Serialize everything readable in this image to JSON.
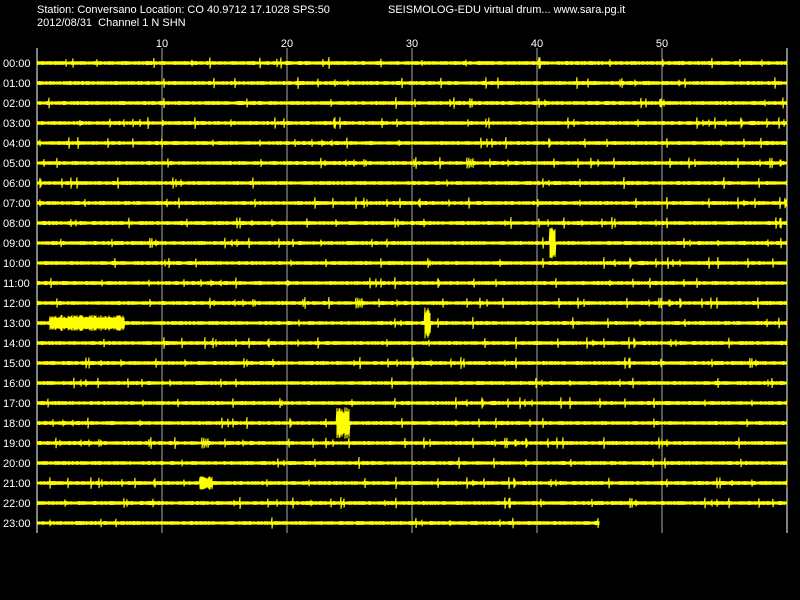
{
  "header": {
    "station_line": "Station: Conversano Location: CO 40.9712 17.1028 SPS:50",
    "source_line": "SEISMOLOG-EDU virtual drum... www.sara.pg.it",
    "date_line": "2012/08/31  Channel 1 N SHN"
  },
  "chart_data": {
    "type": "line",
    "title": "",
    "xlabel": "",
    "ylabel": "",
    "x_ticks": [
      "10",
      "20",
      "30",
      "40",
      "50"
    ],
    "x_tick_values": [
      10,
      20,
      30,
      40,
      50
    ],
    "xlim": [
      0,
      60
    ],
    "rows": [
      "00:00",
      "01:00",
      "02:00",
      "03:00",
      "04:00",
      "05:00",
      "06:00",
      "07:00",
      "08:00",
      "09:00",
      "10:00",
      "11:00",
      "12:00",
      "13:00",
      "14:00",
      "15:00",
      "16:00",
      "17:00",
      "18:00",
      "19:00",
      "20:00",
      "21:00",
      "22:00",
      "23:00"
    ],
    "last_row_end_minute": 45,
    "grid": true,
    "trace_color": "#ffff00",
    "background_color": "#000000",
    "grid_color": "#ffffff",
    "events": [
      {
        "row": "13:00",
        "start_minute": 1,
        "end_minute": 7,
        "amplitude": "large"
      },
      {
        "row": "13:00",
        "start_minute": 31,
        "end_minute": 31.5,
        "amplitude": "spike"
      },
      {
        "row": "18:00",
        "start_minute": 24,
        "end_minute": 25,
        "amplitude": "spike"
      },
      {
        "row": "21:00",
        "start_minute": 13,
        "end_minute": 14,
        "amplitude": "medium"
      },
      {
        "row": "09:00",
        "start_minute": 41,
        "end_minute": 41.5,
        "amplitude": "spike"
      }
    ]
  }
}
